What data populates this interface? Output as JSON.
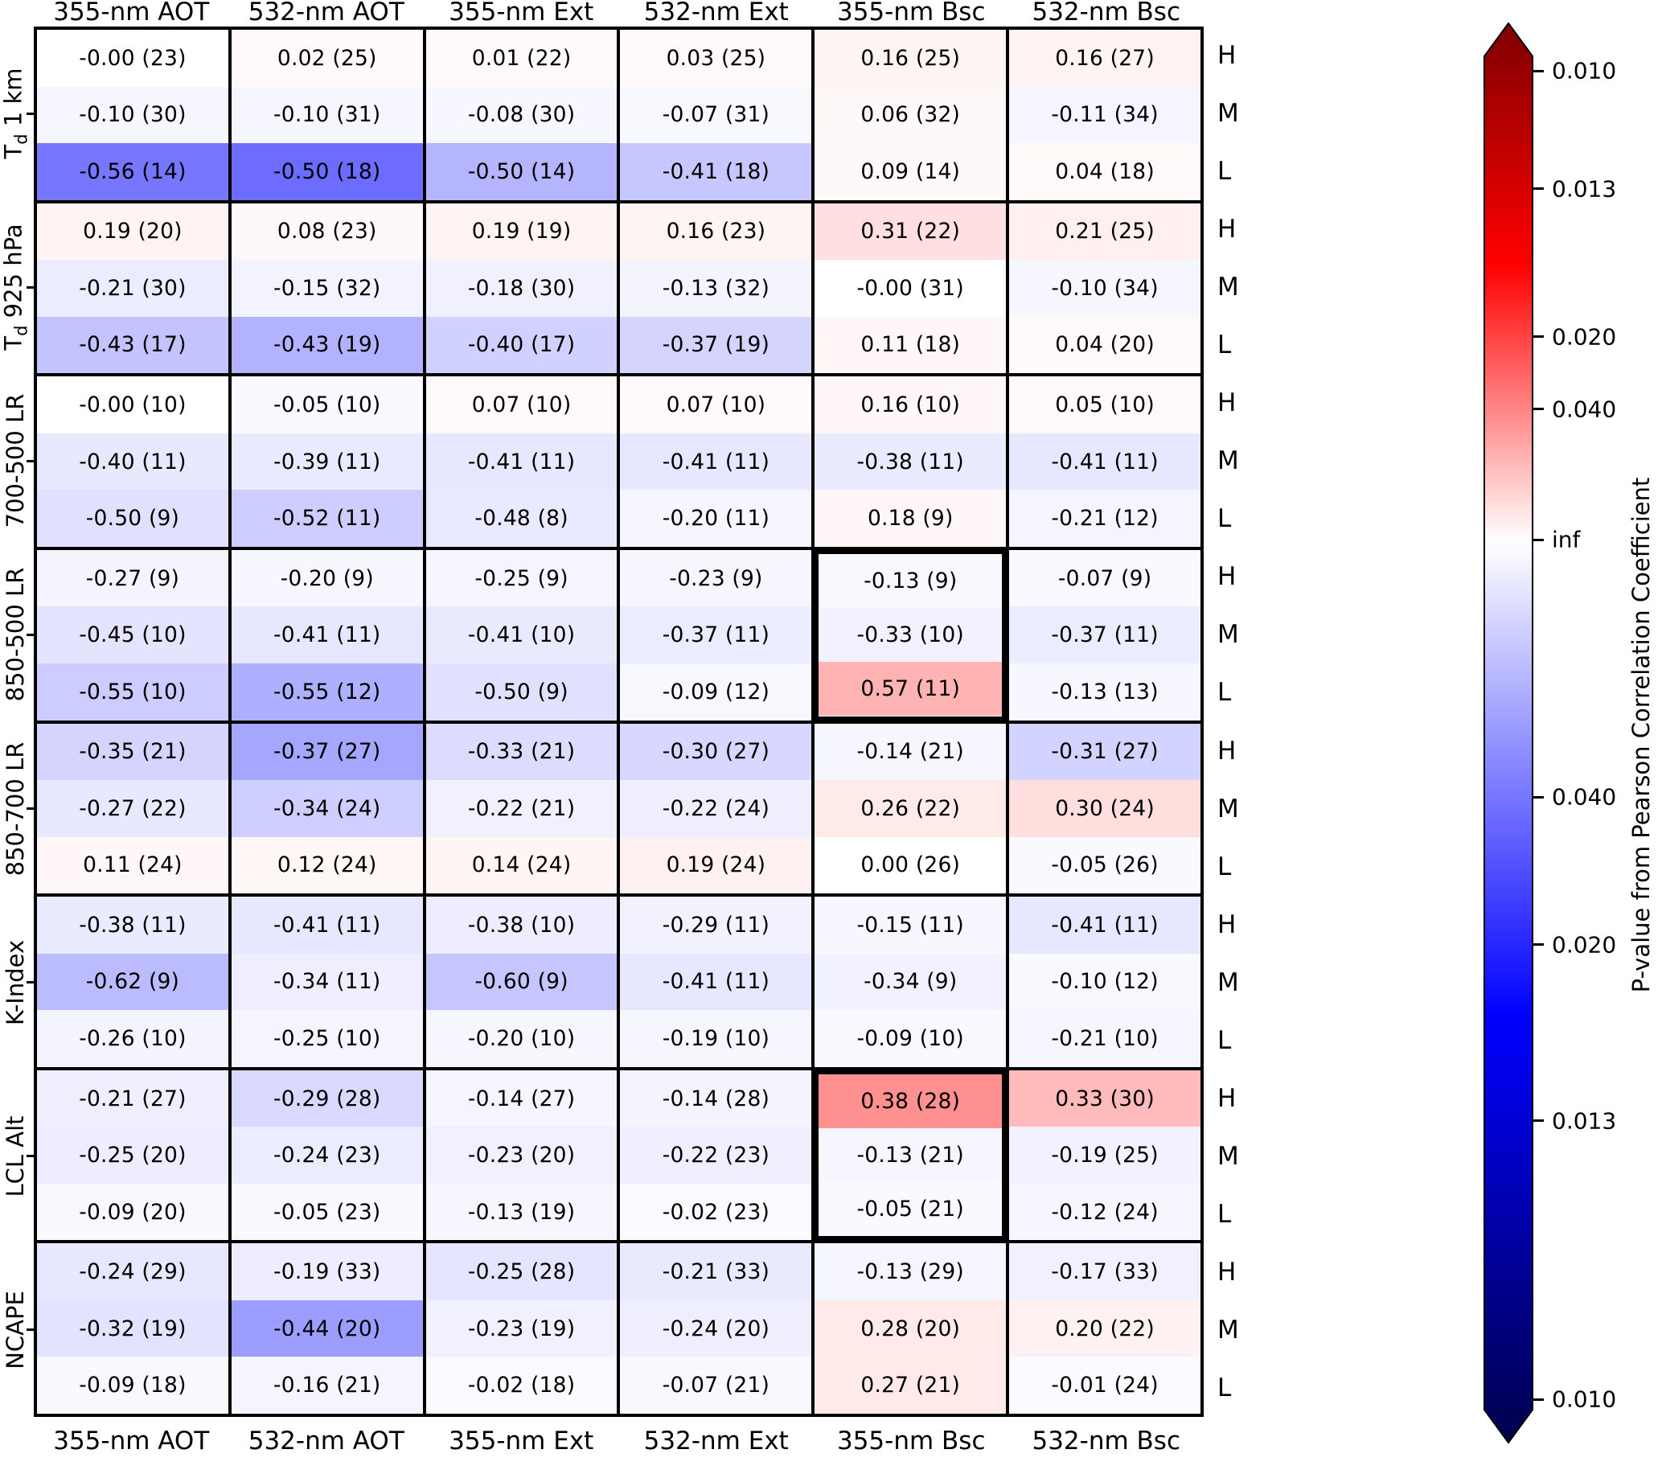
{
  "figure": {
    "background": "#ffffff",
    "text_color": "#000000",
    "grid_line_color": "#000000"
  },
  "chart_data": {
    "type": "heatmap",
    "columns": [
      "355-nm AOT",
      "532-nm AOT",
      "355-nm Ext",
      "532-nm Ext",
      "355-nm Bsc",
      "532-nm Bsc"
    ],
    "groups": [
      {
        "label": "T_d 1 km",
        "rows": [
          {
            "level": "H",
            "cells": [
              "-0.00 (23)",
              "0.02 (25)",
              "0.01 (22)",
              "0.03 (25)",
              "0.16 (25)",
              "0.16 (27)"
            ]
          },
          {
            "level": "M",
            "cells": [
              "-0.10 (30)",
              "-0.10 (31)",
              "-0.08 (30)",
              "-0.07 (31)",
              "0.06 (32)",
              "-0.11 (34)"
            ]
          },
          {
            "level": "L",
            "cells": [
              "-0.56 (14)",
              "-0.50 (18)",
              "-0.50 (14)",
              "-0.41 (18)",
              "0.09 (14)",
              "0.04 (18)"
            ]
          }
        ]
      },
      {
        "label": "T_d 925 hPa",
        "rows": [
          {
            "level": "H",
            "cells": [
              "0.19 (20)",
              "0.08 (23)",
              "0.19 (19)",
              "0.16 (23)",
              "0.31 (22)",
              "0.21 (25)"
            ]
          },
          {
            "level": "M",
            "cells": [
              "-0.21 (30)",
              "-0.15 (32)",
              "-0.18 (30)",
              "-0.13 (32)",
              "-0.00 (31)",
              "-0.10 (34)"
            ]
          },
          {
            "level": "L",
            "cells": [
              "-0.43 (17)",
              "-0.43 (19)",
              "-0.40 (17)",
              "-0.37 (19)",
              "0.11 (18)",
              "0.04 (20)"
            ]
          }
        ]
      },
      {
        "label": "700-500 LR",
        "rows": [
          {
            "level": "H",
            "cells": [
              "-0.00 (10)",
              "-0.05 (10)",
              "0.07 (10)",
              "0.07 (10)",
              "0.16 (10)",
              "0.05 (10)"
            ]
          },
          {
            "level": "M",
            "cells": [
              "-0.40 (11)",
              "-0.39 (11)",
              "-0.41 (11)",
              "-0.41 (11)",
              "-0.38 (11)",
              "-0.41 (11)"
            ]
          },
          {
            "level": "L",
            "cells": [
              "-0.50 (9)",
              "-0.52 (11)",
              "-0.48 (8)",
              "-0.20 (11)",
              "0.18 (9)",
              "-0.21 (12)"
            ]
          }
        ]
      },
      {
        "label": "850-500 LR",
        "rows": [
          {
            "level": "H",
            "cells": [
              "-0.27 (9)",
              "-0.20 (9)",
              "-0.25 (9)",
              "-0.23 (9)",
              "-0.13 (9)",
              "-0.07 (9)"
            ]
          },
          {
            "level": "M",
            "cells": [
              "-0.45 (10)",
              "-0.41 (11)",
              "-0.41 (10)",
              "-0.37 (11)",
              "-0.33 (10)",
              "-0.37 (11)"
            ]
          },
          {
            "level": "L",
            "cells": [
              "-0.55 (10)",
              "-0.55 (12)",
              "-0.50 (9)",
              "-0.09 (12)",
              "0.57 (11)",
              "-0.13 (13)"
            ]
          }
        ]
      },
      {
        "label": "850-700 LR",
        "rows": [
          {
            "level": "H",
            "cells": [
              "-0.35 (21)",
              "-0.37 (27)",
              "-0.33 (21)",
              "-0.30 (27)",
              "-0.14 (21)",
              "-0.31 (27)"
            ]
          },
          {
            "level": "M",
            "cells": [
              "-0.27 (22)",
              "-0.34 (24)",
              "-0.22 (21)",
              "-0.22 (24)",
              "0.26 (22)",
              "0.30 (24)"
            ]
          },
          {
            "level": "L",
            "cells": [
              "0.11 (24)",
              "0.12 (24)",
              "0.14 (24)",
              "0.19 (24)",
              "0.00 (26)",
              "-0.05 (26)"
            ]
          }
        ]
      },
      {
        "label": "K-Index",
        "rows": [
          {
            "level": "H",
            "cells": [
              "-0.38 (11)",
              "-0.41 (11)",
              "-0.38 (10)",
              "-0.29 (11)",
              "-0.15 (11)",
              "-0.41 (11)"
            ]
          },
          {
            "level": "M",
            "cells": [
              "-0.62 (9)",
              "-0.34 (11)",
              "-0.60 (9)",
              "-0.41 (11)",
              "-0.34 (9)",
              "-0.10 (12)"
            ]
          },
          {
            "level": "L",
            "cells": [
              "-0.26 (10)",
              "-0.25 (10)",
              "-0.20 (10)",
              "-0.19 (10)",
              "-0.09 (10)",
              "-0.21 (10)"
            ]
          }
        ]
      },
      {
        "label": "LCL Alt",
        "rows": [
          {
            "level": "H",
            "cells": [
              "-0.21 (27)",
              "-0.29 (28)",
              "-0.14 (27)",
              "-0.14 (28)",
              "0.38 (28)",
              "0.33 (30)"
            ]
          },
          {
            "level": "M",
            "cells": [
              "-0.25 (20)",
              "-0.24 (23)",
              "-0.23 (20)",
              "-0.22 (23)",
              "-0.13 (21)",
              "-0.19 (25)"
            ]
          },
          {
            "level": "L",
            "cells": [
              "-0.09 (20)",
              "-0.05 (23)",
              "-0.13 (19)",
              "-0.02 (23)",
              "-0.05 (21)",
              "-0.12 (24)"
            ]
          }
        ]
      },
      {
        "label": "NCAPE",
        "rows": [
          {
            "level": "H",
            "cells": [
              "-0.24 (29)",
              "-0.19 (33)",
              "-0.25 (28)",
              "-0.21 (33)",
              "-0.13 (29)",
              "-0.17 (33)"
            ]
          },
          {
            "level": "M",
            "cells": [
              "-0.32 (19)",
              "-0.44 (20)",
              "-0.23 (19)",
              "-0.24 (20)",
              "0.28 (20)",
              "0.20 (22)"
            ]
          },
          {
            "level": "L",
            "cells": [
              "-0.09 (18)",
              "-0.16 (21)",
              "-0.02 (18)",
              "-0.07 (21)",
              "0.27 (21)",
              "-0.01 (24)"
            ]
          }
        ]
      }
    ],
    "highlight_boxes": [
      {
        "group_index": 3,
        "group_label": "850-500 LR",
        "column_index": 4,
        "column_label": "355-nm Bsc"
      },
      {
        "group_index": 6,
        "group_label": "LCL Alt",
        "column_index": 4,
        "column_label": "355-nm Bsc"
      }
    ],
    "colorbar": {
      "title": "P-value from Pearson Correlation Coefficient",
      "ticks": [
        {
          "label": "0.010",
          "pos": 0.034
        },
        {
          "label": "0.013",
          "pos": 0.117
        },
        {
          "label": "0.020",
          "pos": 0.221
        },
        {
          "label": "0.040",
          "pos": 0.272
        },
        {
          "label": "inf",
          "pos": 0.364
        },
        {
          "label": "0.040",
          "pos": 0.545
        },
        {
          "label": "0.020",
          "pos": 0.649
        },
        {
          "label": "0.013",
          "pos": 0.773
        },
        {
          "label": "0.010",
          "pos": 0.969
        }
      ],
      "gradient": [
        {
          "pos": 0.0,
          "color": "#7f0000"
        },
        {
          "pos": 0.17,
          "color": "#ff0000"
        },
        {
          "pos": 0.365,
          "color": "#ffffff"
        },
        {
          "pos": 0.7,
          "color": "#0000ff"
        },
        {
          "pos": 1.0,
          "color": "#00004d"
        }
      ]
    },
    "cell_colormap": {
      "zero": "#ffffff",
      "positive_mid": "#ff0000",
      "positive_dark": "#8b0000",
      "negative_mid": "#0000ff",
      "negative_dark": "#00008b",
      "full_scale_inverse_p": 100
    }
  }
}
